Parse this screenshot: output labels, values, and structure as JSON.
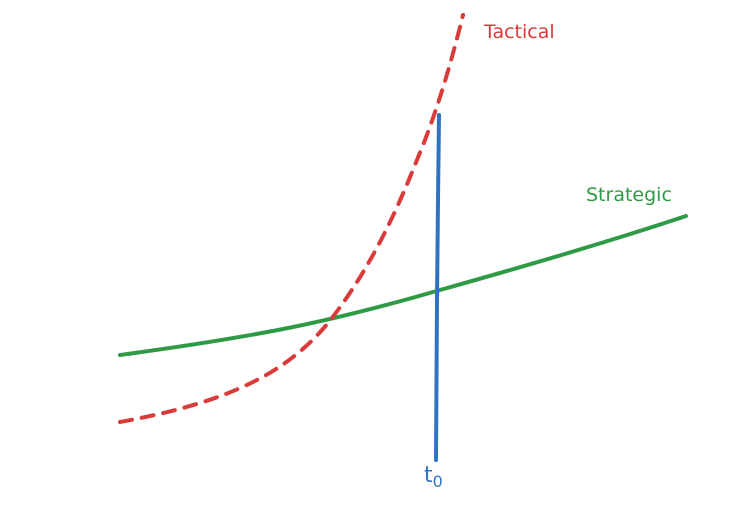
{
  "labels": {
    "tactical": "Tactical",
    "strategic": "Strategic",
    "time_main": "t",
    "time_sub": "0"
  },
  "colors": {
    "tactical": "#d93a3a",
    "strategic": "#2f9a45",
    "time_marker": "#2f72c2",
    "background": "#ffffff"
  },
  "lines": {
    "tactical_style": "dashed",
    "strategic_style": "solid",
    "time_marker_style": "solid"
  }
}
